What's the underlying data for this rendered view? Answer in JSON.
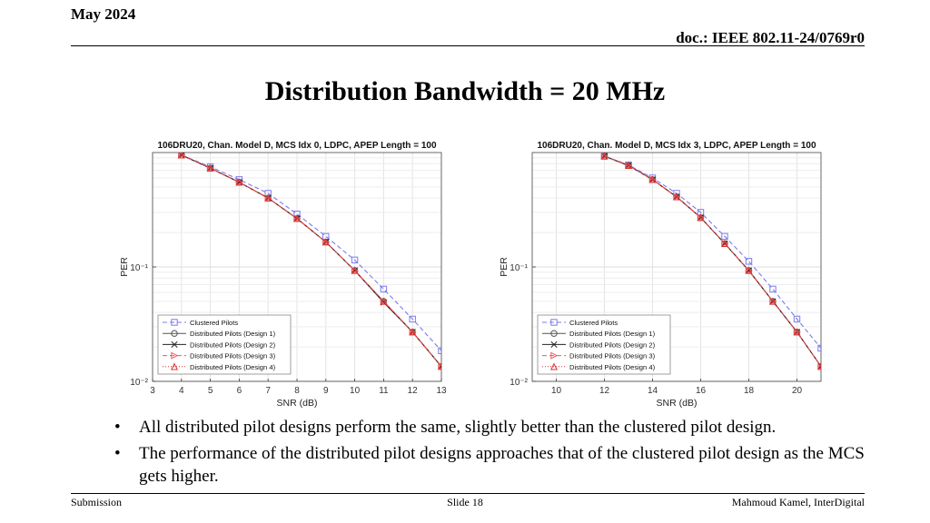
{
  "header": {
    "date": "May 2024",
    "doc": "doc.: IEEE 802.11-24/0769r0"
  },
  "title": "Distribution Bandwidth = 20 MHz",
  "chart_data": [
    {
      "type": "line",
      "title": "106DRU20, Chan. Model D, MCS Idx 0, LDPC, APEP Length = 100",
      "xlabel": "SNR (dB)",
      "ylabel": "PER",
      "xlim": [
        3,
        13
      ],
      "ylim": [
        0.01,
        1
      ],
      "yscale": "log",
      "xticks": [
        "3",
        "4",
        "5",
        "6",
        "7",
        "8",
        "9",
        "10",
        "11",
        "12",
        "13"
      ],
      "yticks": [
        {
          "value": 0.01,
          "label": "10⁻²"
        },
        {
          "value": 0.1,
          "label": "10⁻¹"
        }
      ],
      "grid": true,
      "legend": "bottom-left",
      "x": [
        4,
        5,
        6,
        7,
        8,
        9,
        10,
        11,
        12,
        13
      ],
      "series": [
        {
          "name": "Clustered Pilots",
          "color": "#7b7bf0",
          "dash": "5,3",
          "marker": "square",
          "values": [
            0.95,
            0.75,
            0.58,
            0.44,
            0.29,
            0.185,
            0.115,
            0.064,
            0.035,
            0.0185
          ]
        },
        {
          "name": "Distributed Pilots (Design 1)",
          "color": "#555555",
          "dash": "",
          "marker": "circle",
          "values": [
            0.95,
            0.73,
            0.55,
            0.4,
            0.265,
            0.165,
            0.093,
            0.05,
            0.027,
            0.0135
          ]
        },
        {
          "name": "Distributed Pilots (Design 2)",
          "color": "#222222",
          "dash": "",
          "marker": "x",
          "values": [
            0.95,
            0.73,
            0.55,
            0.4,
            0.265,
            0.165,
            0.093,
            0.049,
            0.027,
            0.0135
          ]
        },
        {
          "name": "Distributed Pilots (Design 3)",
          "color": "#f05a5a",
          "dash": "5,3",
          "marker": "triangle-right",
          "values": [
            0.95,
            0.73,
            0.55,
            0.4,
            0.265,
            0.165,
            0.093,
            0.05,
            0.027,
            0.0135
          ]
        },
        {
          "name": "Distributed Pilots (Design 4)",
          "color": "#dd3333",
          "dash": "1,2",
          "marker": "triangle-up",
          "values": [
            0.95,
            0.73,
            0.55,
            0.4,
            0.265,
            0.165,
            0.093,
            0.05,
            0.027,
            0.0135
          ]
        }
      ]
    },
    {
      "type": "line",
      "title": "106DRU20, Chan. Model D, MCS Idx 3, LDPC, APEP Length = 100",
      "xlabel": "SNR (dB)",
      "ylabel": "PER",
      "xlim": [
        9,
        21
      ],
      "ylim": [
        0.01,
        1
      ],
      "yscale": "log",
      "xticks": [
        "10",
        "12",
        "14",
        "16",
        "18",
        "20"
      ],
      "yticks": [
        {
          "value": 0.01,
          "label": "10⁻²"
        },
        {
          "value": 0.1,
          "label": "10⁻¹"
        }
      ],
      "grid": true,
      "legend": "bottom-left",
      "x": [
        12,
        13,
        14,
        15,
        16,
        17,
        18,
        19,
        20,
        21
      ],
      "series": [
        {
          "name": "Clustered Pilots",
          "color": "#7b7bf0",
          "dash": "5,3",
          "marker": "square",
          "values": [
            0.93,
            0.78,
            0.6,
            0.44,
            0.3,
            0.185,
            0.112,
            0.064,
            0.035,
            0.0195
          ]
        },
        {
          "name": "Distributed Pilots (Design 1)",
          "color": "#555555",
          "dash": "",
          "marker": "circle",
          "values": [
            0.93,
            0.77,
            0.58,
            0.41,
            0.27,
            0.16,
            0.093,
            0.05,
            0.027,
            0.0135
          ]
        },
        {
          "name": "Distributed Pilots (Design 2)",
          "color": "#222222",
          "dash": "",
          "marker": "x",
          "values": [
            0.93,
            0.77,
            0.58,
            0.41,
            0.27,
            0.16,
            0.093,
            0.05,
            0.027,
            0.0135
          ]
        },
        {
          "name": "Distributed Pilots (Design 3)",
          "color": "#f05a5a",
          "dash": "5,3",
          "marker": "triangle-right",
          "values": [
            0.93,
            0.77,
            0.58,
            0.41,
            0.27,
            0.16,
            0.093,
            0.05,
            0.027,
            0.0135
          ]
        },
        {
          "name": "Distributed Pilots (Design 4)",
          "color": "#dd3333",
          "dash": "1,2",
          "marker": "triangle-up",
          "values": [
            0.93,
            0.77,
            0.58,
            0.41,
            0.27,
            0.16,
            0.093,
            0.05,
            0.027,
            0.0135
          ]
        }
      ]
    }
  ],
  "bullets": [
    "All distributed pilot designs perform the same, slightly better than the clustered pilot design.",
    "The performance of the distributed pilot designs approaches that of the clustered pilot design as the MCS gets higher."
  ],
  "bullet_glyph": "•",
  "footer": {
    "left": "Submission",
    "center": "Slide 18",
    "right": "Mahmoud Kamel, InterDigital"
  }
}
